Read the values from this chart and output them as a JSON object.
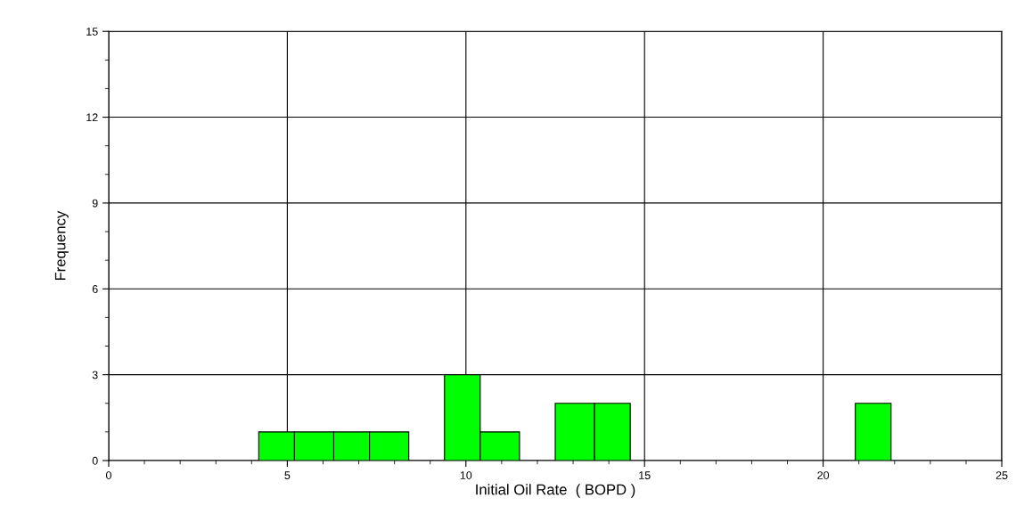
{
  "chart_data": {
    "type": "histogram",
    "xlabel": "Initial Oil Rate  ( BOPD )",
    "ylabel": "Frequency",
    "bins": [
      4.2,
      5.2,
      6.3,
      7.3,
      8.4,
      9.4,
      10.4,
      11.5,
      12.5,
      13.6,
      14.6,
      20.9,
      21.9
    ],
    "values": [
      1,
      1,
      1,
      1,
      0,
      3,
      1,
      0,
      2,
      2,
      0,
      2
    ],
    "color": "#00ff00",
    "xlim": [
      0,
      25
    ],
    "xticks": [
      0,
      5,
      10,
      15,
      20,
      25
    ],
    "ylim": [
      0,
      15
    ],
    "yticks": [
      0,
      3,
      6,
      9,
      12,
      15
    ],
    "grid": true
  }
}
